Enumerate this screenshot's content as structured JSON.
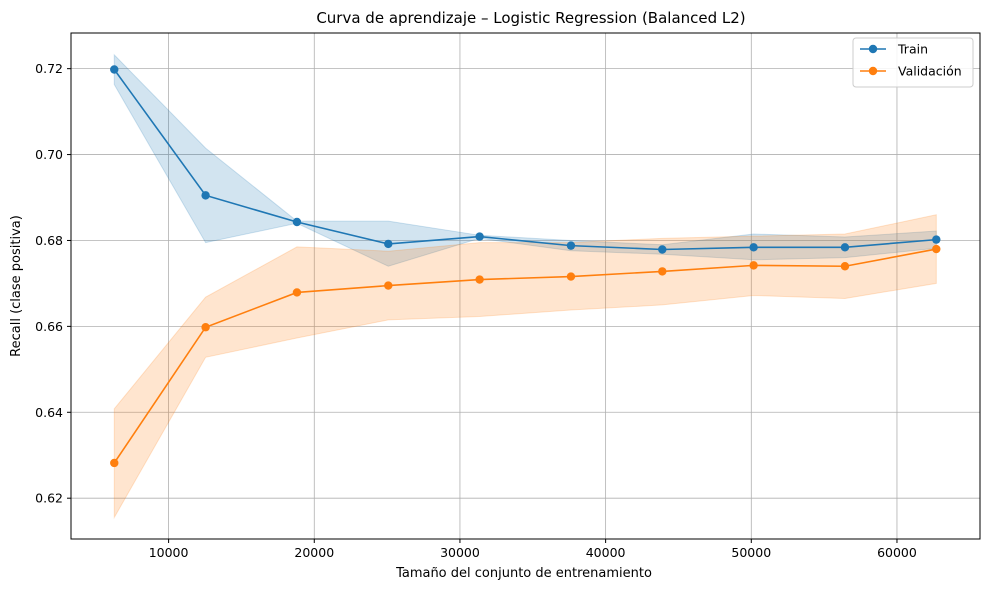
{
  "chart_data": {
    "type": "line",
    "title": "Curva de aprendizaje – Logistic Regression (Balanced L2)",
    "xlabel": "Tamaño del conjunto de entrenamiento",
    "ylabel": "Recall (clase positiva)",
    "xlim": [
      3300,
      65700
    ],
    "ylim": [
      0.6105,
      0.7283
    ],
    "xticks": [
      10000,
      20000,
      30000,
      40000,
      50000,
      60000
    ],
    "xtick_labels": [
      "10000",
      "20000",
      "30000",
      "40000",
      "50000",
      "60000"
    ],
    "yticks": [
      0.62,
      0.64,
      0.66,
      0.68,
      0.7,
      0.72
    ],
    "ytick_labels": [
      "0.62",
      "0.64",
      "0.66",
      "0.68",
      "0.70",
      "0.72"
    ],
    "grid": true,
    "legend_position": "top-right",
    "x": [
      6270,
      12540,
      18810,
      25080,
      31350,
      37620,
      43890,
      50160,
      56430,
      62700
    ],
    "series": [
      {
        "name": "Train",
        "color": "#1f77b4",
        "values": [
          0.7198,
          0.6905,
          0.6843,
          0.6792,
          0.6809,
          0.6788,
          0.6779,
          0.6784,
          0.6784,
          0.6802
        ],
        "band_upper": [
          0.7232,
          0.7015,
          0.6845,
          0.6845,
          0.6812,
          0.68,
          0.679,
          0.6815,
          0.6808,
          0.6822
        ],
        "band_lower": [
          0.7163,
          0.6795,
          0.684,
          0.674,
          0.6805,
          0.6776,
          0.6768,
          0.6755,
          0.676,
          0.6782
        ]
      },
      {
        "name": "Validación",
        "color": "#ff7f0e",
        "values": [
          0.6282,
          0.6598,
          0.6679,
          0.6695,
          0.6709,
          0.6716,
          0.6728,
          0.6742,
          0.674,
          0.678
        ],
        "band_upper": [
          0.6408,
          0.6668,
          0.6785,
          0.6775,
          0.6795,
          0.6795,
          0.6805,
          0.681,
          0.6815,
          0.686
        ],
        "band_lower": [
          0.6155,
          0.6528,
          0.6573,
          0.6615,
          0.6623,
          0.6638,
          0.665,
          0.6672,
          0.6665,
          0.67
        ]
      }
    ]
  }
}
